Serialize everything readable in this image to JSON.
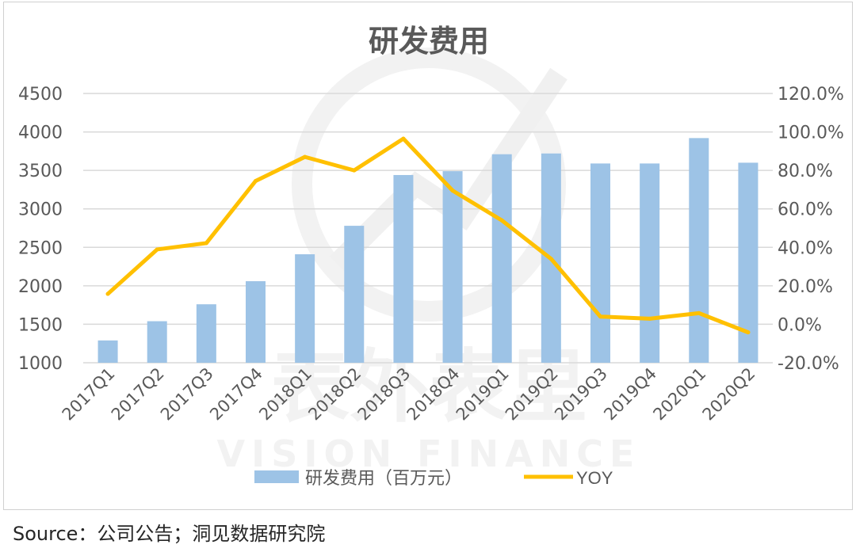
{
  "source_note": "Source：公司公告；洞见数据研究院",
  "watermark": {
    "cn": "表外表里",
    "en": "VISION FINANCE"
  },
  "chart_data": {
    "type": "bar",
    "title": "研发费用",
    "categories": [
      "2017Q1",
      "2017Q2",
      "2017Q3",
      "2017Q4",
      "2018Q1",
      "2018Q2",
      "2018Q3",
      "2018Q4",
      "2019Q1",
      "2019Q2",
      "2019Q3",
      "2019Q4",
      "2020Q1",
      "2020Q2"
    ],
    "series": [
      {
        "name": "研发费用（百万元）",
        "type": "bar",
        "axis": "left",
        "color": "#9dc3e6",
        "values": [
          1290,
          1540,
          1760,
          2060,
          2410,
          2780,
          3440,
          3490,
          3710,
          3720,
          3590,
          3590,
          3920,
          3600
        ]
      },
      {
        "name": "YOY",
        "type": "line",
        "axis": "right",
        "color": "#ffc000",
        "values": [
          15.8,
          38.9,
          42.2,
          74.5,
          87.0,
          80.0,
          96.5,
          69.5,
          54.0,
          34.0,
          4.0,
          2.9,
          5.8,
          -4.2
        ]
      }
    ],
    "y_left": {
      "ylim": [
        1000,
        4500
      ],
      "ticks": [
        1000,
        1500,
        2000,
        2500,
        3000,
        3500,
        4000,
        4500
      ],
      "tick_labels": [
        "1000",
        "1500",
        "2000",
        "2500",
        "3000",
        "3500",
        "4000",
        "4500"
      ]
    },
    "y_right": {
      "ylim": [
        -20,
        120
      ],
      "ticks": [
        -20,
        0,
        20,
        40,
        60,
        80,
        100,
        120
      ],
      "tick_labels": [
        "-20.0%",
        "0.0%",
        "20.0%",
        "40.0%",
        "60.0%",
        "80.0%",
        "100.0%",
        "120.0%"
      ]
    },
    "grid": true,
    "legend_position": "bottom"
  }
}
